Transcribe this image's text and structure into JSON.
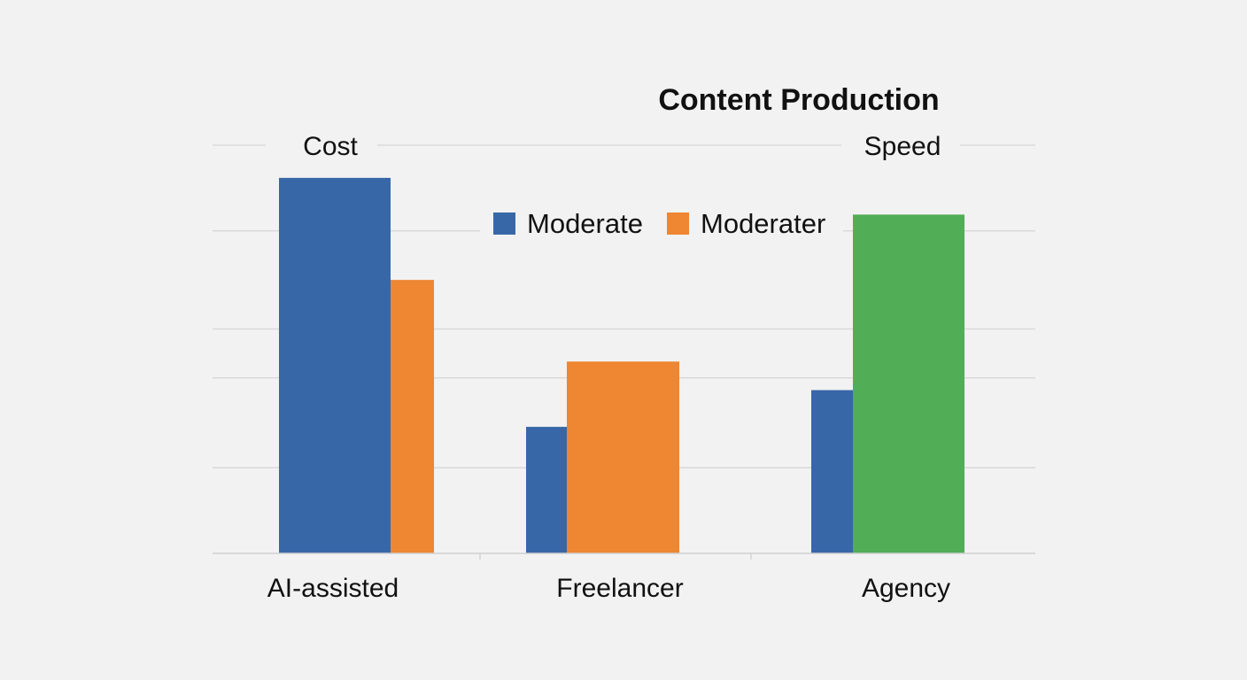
{
  "chart_data": {
    "type": "bar",
    "title": "Content Production",
    "panel_labels": [
      "Cost",
      "Speed"
    ],
    "categories": [
      "AI-assisted",
      "Freelancer",
      "Agency"
    ],
    "legend": [
      {
        "name": "Moderate",
        "color": "#3867a8"
      },
      {
        "name": "Moderater",
        "color": "#ee8632"
      }
    ],
    "legend_position": "top-center",
    "bars": [
      {
        "category": "AI-assisted",
        "series": "Moderate",
        "value": 92,
        "color": "#3867a8"
      },
      {
        "category": "AI-assisted",
        "series": "Moderater",
        "value": 67,
        "color": "#ee8632"
      },
      {
        "category": "Freelancer",
        "series": "Moderate",
        "value": 31,
        "color": "#3867a8"
      },
      {
        "category": "Freelancer",
        "series": "Moderater",
        "value": 47,
        "color": "#ee8632"
      },
      {
        "category": "Agency",
        "series": "Moderate",
        "value": 40,
        "color": "#3867a8"
      },
      {
        "category": "Agency",
        "series": "Speed",
        "value": 83,
        "color": "#52ae56"
      }
    ],
    "gridlines": [
      0,
      21,
      43,
      55,
      79,
      100
    ],
    "ylim": [
      0,
      100
    ],
    "grid": true,
    "xlabel": "",
    "ylabel": ""
  }
}
